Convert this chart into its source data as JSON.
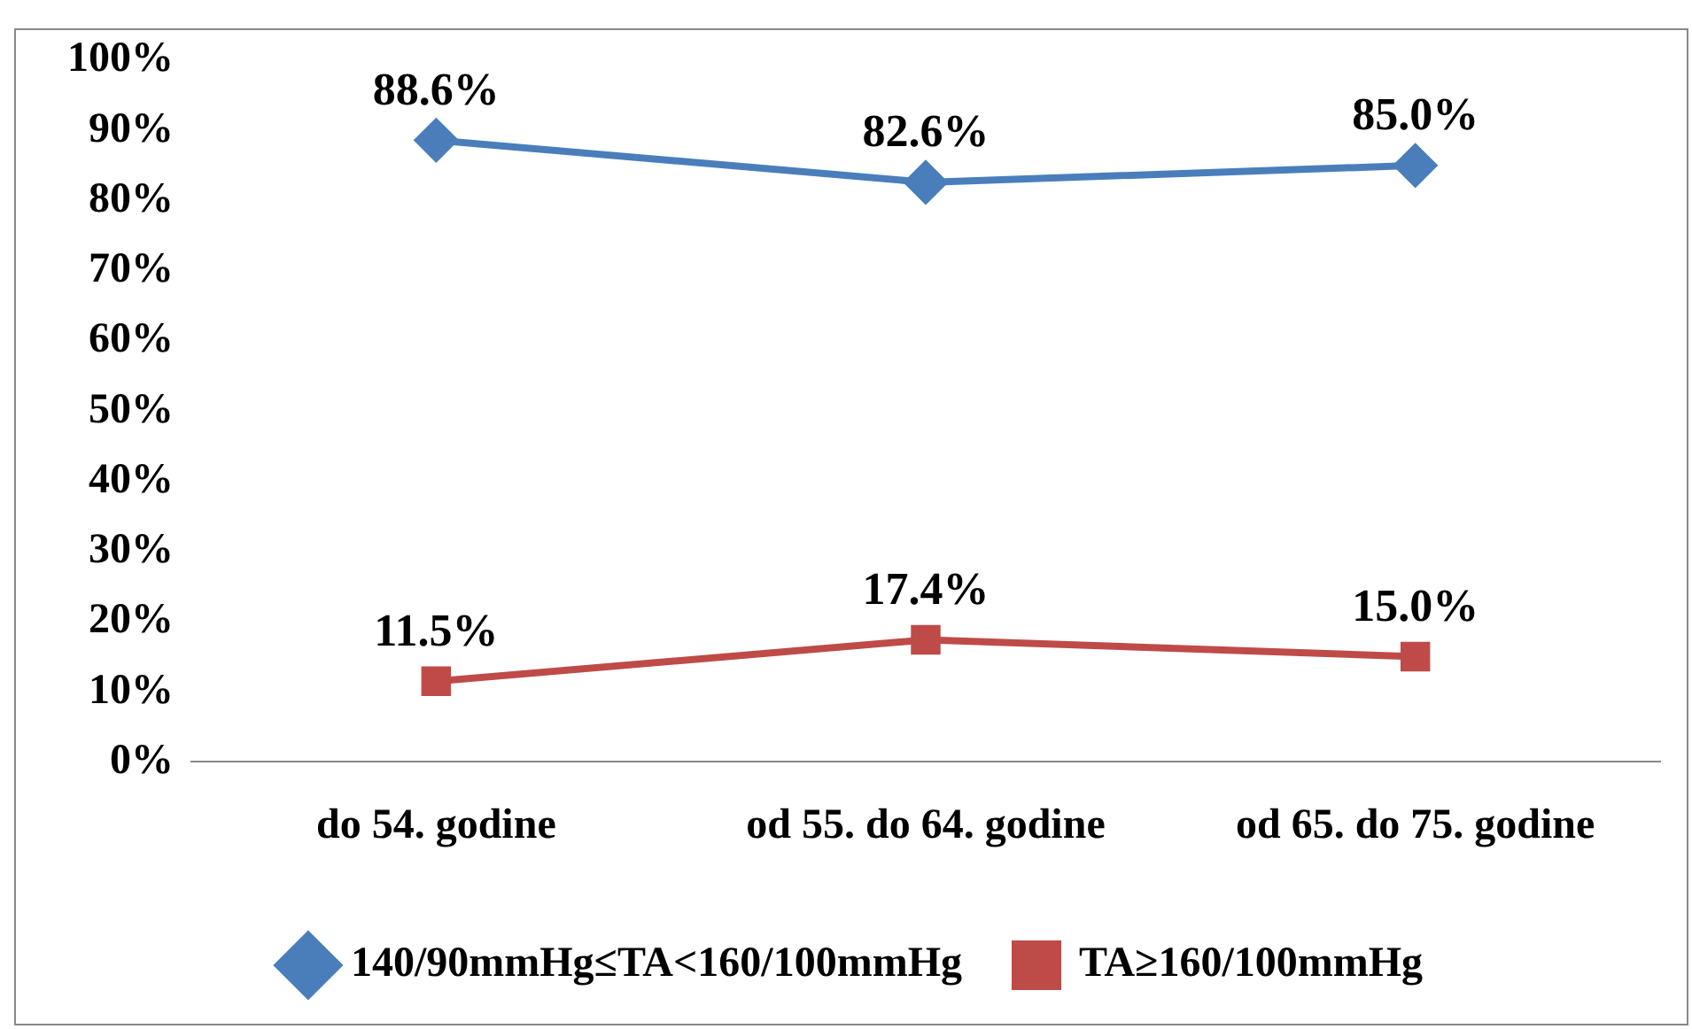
{
  "chart_data": {
    "type": "line",
    "categories": [
      "do 54. godine",
      "od 55. do 64. godine",
      "od 65. do 75. godine"
    ],
    "series": [
      {
        "name": "140/90mmHg≤TA<160/100mmHg",
        "color": "#4a7ebb",
        "marker": "diamond",
        "values": [
          88.6,
          82.6,
          85.0
        ],
        "value_labels": [
          "88.6%",
          "82.6%",
          "85.0%"
        ]
      },
      {
        "name": "TA≥160/100mmHg",
        "color": "#be4b48",
        "marker": "square",
        "values": [
          11.5,
          17.4,
          15.0
        ],
        "value_labels": [
          "11.5%",
          "17.4%",
          "15.0%"
        ]
      }
    ],
    "ylim": [
      0,
      100
    ],
    "yticks": [
      {
        "value": 0,
        "label": "0%"
      },
      {
        "value": 10,
        "label": "10%"
      },
      {
        "value": 20,
        "label": "20%"
      },
      {
        "value": 30,
        "label": "30%"
      },
      {
        "value": 40,
        "label": "40%"
      },
      {
        "value": 50,
        "label": "50%"
      },
      {
        "value": 60,
        "label": "60%"
      },
      {
        "value": 70,
        "label": "70%"
      },
      {
        "value": 80,
        "label": "80%"
      },
      {
        "value": 90,
        "label": "90%"
      },
      {
        "value": 100,
        "label": "100%"
      }
    ],
    "grid": false,
    "legend": "bottom",
    "line_style": "solid"
  }
}
